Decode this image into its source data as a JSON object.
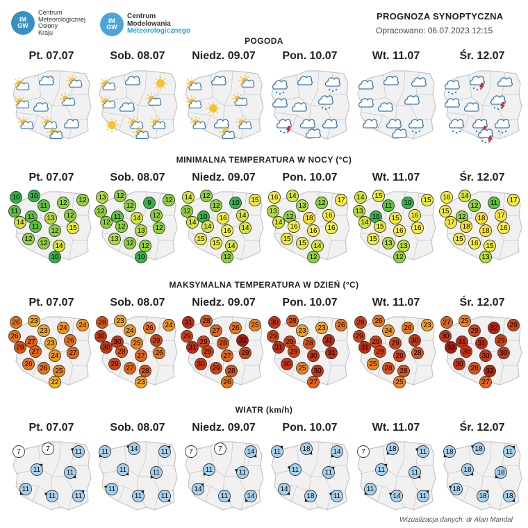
{
  "header": {
    "logo1": {
      "badge_line1": "IM",
      "badge_line2": "GW",
      "lines": [
        "Centrum",
        "Meteorologicznej",
        "Osłony",
        "Kraju"
      ]
    },
    "logo2": {
      "badge_line1": "IM",
      "badge_line2": "GW",
      "lines": [
        "Centrum",
        "Modelowania",
        "Meteorologicznego"
      ]
    },
    "title": "PROGNOZA SYNOPTYCZNA",
    "issued": "Opracowano: 06.07.2023 12:15"
  },
  "days": [
    "Pt. 07.07",
    "Sob. 08.07",
    "Niedz. 09.07",
    "Pon. 10.07",
    "Wt. 11.07",
    "Śr. 12.07"
  ],
  "sections": {
    "weather": "POGODA",
    "min_temp": "MINIMALNA TEMPERATURA W NOCY (°C)",
    "max_temp": "MAKSYMALNA TEMPERATURA W DZIEŃ (°C)",
    "wind": "WIATR (km/h)"
  },
  "weather_icons": [
    [
      "partly-cloudy",
      "cloud",
      "partly-cloudy",
      "partly-cloudy",
      "cloud",
      "partly-cloudy",
      "partly-cloudy",
      "partly-cloudy",
      "cloud",
      "partly-cloudy"
    ],
    [
      "partly-cloudy",
      "cloud",
      "sun",
      "partly-cloudy",
      "cloud",
      "partly-cloudy",
      "sun",
      "partly-cloudy",
      "partly-cloudy",
      "partly-cloudy"
    ],
    [
      "partly-cloudy",
      "cloud",
      "partly-cloudy",
      "partly-cloudy",
      "sun",
      "partly-cloudy",
      "partly-cloudy",
      "cloud",
      "partly-cloudy",
      "partly-cloudy"
    ],
    [
      "rain",
      "cloud",
      "cloud-rain",
      "cloud",
      "cloud",
      "rain",
      "storm",
      "cloud",
      "cloud",
      "cloud"
    ],
    [
      "cloud",
      "cloud",
      "cloud",
      "cloud",
      "cloud",
      "cloud",
      "cloud",
      "cloud",
      "cloud-rain",
      "cloud"
    ],
    [
      "rain",
      "storm",
      "cloud",
      "cloud",
      "cloud",
      "storm",
      "cloud-rain",
      "storm",
      "cloud-rain",
      "storm"
    ]
  ],
  "min_temps": [
    [
      10,
      10,
      11,
      12,
      12,
      11,
      11,
      13,
      12,
      14,
      11,
      12,
      15,
      12,
      12,
      14,
      10
    ],
    [
      13,
      12,
      12,
      9,
      12,
      12,
      11,
      14,
      12,
      12,
      12,
      13,
      12,
      13,
      12,
      12,
      10
    ],
    [
      14,
      12,
      12,
      10,
      15,
      12,
      10,
      16,
      14,
      14,
      14,
      16,
      14,
      15,
      15,
      14,
      12
    ],
    [
      16,
      14,
      13,
      12,
      17,
      13,
      12,
      18,
      16,
      14,
      16,
      16,
      16,
      15,
      15,
      14,
      12
    ],
    [
      14,
      15,
      11,
      10,
      15,
      13,
      10,
      15,
      16,
      14,
      15,
      16,
      16,
      15,
      13,
      13,
      12
    ],
    [
      16,
      14,
      12,
      11,
      17,
      15,
      12,
      18,
      17,
      17,
      18,
      18,
      16,
      15,
      16,
      15,
      13
    ]
  ],
  "max_temps": [
    [
      26,
      23,
      23,
      24,
      24,
      26,
      27,
      23,
      26,
      28,
      27,
      24,
      27,
      26,
      26,
      25,
      22
    ],
    [
      28,
      23,
      24,
      26,
      24,
      30,
      30,
      25,
      29,
      30,
      28,
      27,
      26,
      29,
      27,
      28,
      23
    ],
    [
      31,
      28,
      27,
      26,
      25,
      29,
      29,
      28,
      33,
      31,
      29,
      27,
      29,
      30,
      29,
      28,
      26
    ],
    [
      30,
      28,
      23,
      23,
      26,
      29,
      29,
      28,
      31,
      31,
      29,
      30,
      31,
      30,
      25,
      30,
      27
    ],
    [
      29,
      26,
      24,
      26,
      23,
      29,
      29,
      29,
      30,
      31,
      29,
      29,
      28,
      25,
      28,
      28,
      25
    ],
    [
      27,
      25,
      29,
      32,
      29,
      30,
      31,
      31,
      29,
      33,
      30,
      30,
      30,
      30,
      28,
      32,
      27
    ]
  ],
  "wind": [
    [
      7,
      7,
      11,
      11,
      11,
      11,
      11,
      11
    ],
    [
      11,
      14,
      11,
      11,
      11,
      11,
      11,
      11
    ],
    [
      7,
      7,
      14,
      11,
      11,
      14,
      11,
      14
    ],
    [
      11,
      18,
      14,
      11,
      11,
      14,
      18,
      11
    ],
    [
      7,
      18,
      11,
      11,
      11,
      11,
      14,
      11
    ],
    [
      18,
      18,
      11,
      18,
      18,
      18,
      18,
      18
    ]
  ],
  "colors": {
    "map_fill": "#f1f1f1",
    "map_border": "#c4c4c4",
    "cloud": "#ffffff",
    "cloud_stroke": "#3b78b6",
    "sun": "#f7c230",
    "rain": "#2f7fd6",
    "bolt": "#d8212c",
    "wind_fill": "#a6d2ef",
    "wind_calm": "#ffffff"
  },
  "credit": "Wizualizacja danych: dr Alan Mandal"
}
